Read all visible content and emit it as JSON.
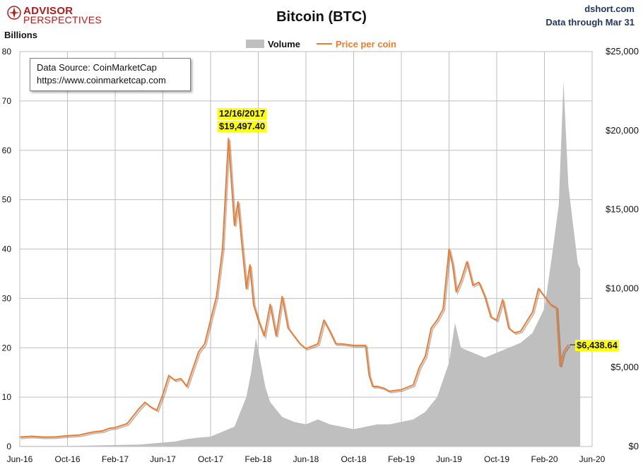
{
  "header": {
    "logo_line1": "ADVISOR",
    "logo_line2": "PERSPECTIVES",
    "title": "Bitcoin (BTC)",
    "site": "dshort.com",
    "data_through": "Data through Mar 31",
    "y_left_unit": "Billions"
  },
  "source_box": {
    "line1": "Data Source: CoinMarketCap",
    "line2": "https://www.coinmarketcap.com"
  },
  "colors": {
    "volume": "#bfbfbf",
    "price": "#ed7d31",
    "highlight": "#ffff00",
    "grid": "#bfbfbf",
    "brand": "#b31b1b",
    "site": "#1f3864"
  },
  "chart_data": {
    "type": "area+line",
    "title": "Bitcoin (BTC)",
    "x_ticks": [
      "Jun-16",
      "Oct-16",
      "Feb-17",
      "Jun-17",
      "Oct-17",
      "Feb-18",
      "Jun-18",
      "Oct-18",
      "Feb-19",
      "Jun-19",
      "Oct-19",
      "Feb-20",
      "Jun-20"
    ],
    "x_range_months": [
      0,
      48
    ],
    "y_left": {
      "label": "Billions",
      "range": [
        0,
        80
      ],
      "ticks": [
        "0",
        "10",
        "20",
        "30",
        "40",
        "50",
        "60",
        "70",
        "80"
      ]
    },
    "y_right": {
      "range": [
        0,
        25000
      ],
      "ticks": [
        "$0",
        "$5,000",
        "$10,000",
        "$15,000",
        "$20,000",
        "$25,000"
      ]
    },
    "legend": [
      {
        "name": "Volume",
        "axis": "left"
      },
      {
        "name": "Price per coin",
        "axis": "right"
      }
    ],
    "series": [
      {
        "name": "Volume",
        "type": "area",
        "unit": "billions USD",
        "points": [
          [
            0,
            0.1
          ],
          [
            2,
            0.1
          ],
          [
            4,
            0.1
          ],
          [
            6,
            0.2
          ],
          [
            8,
            0.3
          ],
          [
            10,
            0.4
          ],
          [
            12,
            0.8
          ],
          [
            13,
            1.0
          ],
          [
            14,
            1.5
          ],
          [
            15,
            1.8
          ],
          [
            16,
            2.0
          ],
          [
            17,
            3.0
          ],
          [
            18,
            4.0
          ],
          [
            19,
            10.0
          ],
          [
            19.4,
            15.0
          ],
          [
            19.8,
            22.0
          ],
          [
            20.2,
            17.0
          ],
          [
            20.6,
            12.0
          ],
          [
            21,
            9.0
          ],
          [
            22,
            6.0
          ],
          [
            23,
            5.0
          ],
          [
            24,
            4.5
          ],
          [
            25,
            5.5
          ],
          [
            26,
            4.5
          ],
          [
            27,
            4.0
          ],
          [
            28,
            3.5
          ],
          [
            29,
            4.0
          ],
          [
            30,
            4.5
          ],
          [
            31,
            4.5
          ],
          [
            32,
            5.0
          ],
          [
            33,
            5.5
          ],
          [
            34,
            7.0
          ],
          [
            35,
            10.0
          ],
          [
            36,
            17.0
          ],
          [
            36.5,
            25.0
          ],
          [
            37,
            20.0
          ],
          [
            38,
            19.0
          ],
          [
            39,
            18.0
          ],
          [
            40,
            19.0
          ],
          [
            41,
            20.0
          ],
          [
            42,
            21.0
          ],
          [
            43,
            23.0
          ],
          [
            44,
            28.0
          ],
          [
            44.6,
            38.0
          ],
          [
            45.2,
            49.0
          ],
          [
            45.6,
            74.0
          ],
          [
            46,
            53.0
          ],
          [
            46.4,
            45.0
          ],
          [
            46.8,
            37.0
          ],
          [
            47,
            36.0
          ]
        ]
      },
      {
        "name": "Price per coin",
        "type": "line",
        "unit": "USD",
        "points": [
          [
            0,
            600
          ],
          [
            1,
            650
          ],
          [
            2,
            600
          ],
          [
            3,
            610
          ],
          [
            4,
            680
          ],
          [
            5,
            730
          ],
          [
            6,
            900
          ],
          [
            7,
            1000
          ],
          [
            7.5,
            1150
          ],
          [
            8,
            1200
          ],
          [
            9,
            1450
          ],
          [
            10,
            2400
          ],
          [
            10.5,
            2800
          ],
          [
            11,
            2500
          ],
          [
            11.5,
            2300
          ],
          [
            12,
            3300
          ],
          [
            12.5,
            4500
          ],
          [
            13,
            4200
          ],
          [
            13.5,
            4300
          ],
          [
            14,
            3800
          ],
          [
            15,
            6000
          ],
          [
            15.5,
            6500
          ],
          [
            16,
            8000
          ],
          [
            16.5,
            9500
          ],
          [
            17,
            12500
          ],
          [
            17.5,
            19497.4
          ],
          [
            18,
            14000
          ],
          [
            18.3,
            15500
          ],
          [
            18.6,
            13000
          ],
          [
            19,
            10000
          ],
          [
            19.3,
            11500
          ],
          [
            19.6,
            9000
          ],
          [
            20,
            8000
          ],
          [
            20.5,
            7000
          ],
          [
            21,
            9000
          ],
          [
            21.5,
            7000
          ],
          [
            22,
            9500
          ],
          [
            22.5,
            7500
          ],
          [
            23,
            7000
          ],
          [
            23.5,
            6500
          ],
          [
            24,
            6200
          ],
          [
            25,
            6500
          ],
          [
            25.5,
            8000
          ],
          [
            26,
            7300
          ],
          [
            26.5,
            6500
          ],
          [
            27,
            6500
          ],
          [
            28,
            6400
          ],
          [
            29,
            6400
          ],
          [
            29.3,
            4500
          ],
          [
            29.6,
            3800
          ],
          [
            30,
            3800
          ],
          [
            30.5,
            3700
          ],
          [
            31,
            3500
          ],
          [
            32,
            3600
          ],
          [
            33,
            3900
          ],
          [
            33.5,
            5000
          ],
          [
            34,
            5700
          ],
          [
            34.5,
            7500
          ],
          [
            35,
            8000
          ],
          [
            35.5,
            8700
          ],
          [
            36,
            12500
          ],
          [
            36.3,
            11500
          ],
          [
            36.6,
            9800
          ],
          [
            37,
            10500
          ],
          [
            37.5,
            11700
          ],
          [
            38,
            10200
          ],
          [
            38.5,
            10400
          ],
          [
            39,
            9500
          ],
          [
            39.5,
            8200
          ],
          [
            40,
            8000
          ],
          [
            40.5,
            9300
          ],
          [
            41,
            7500
          ],
          [
            41.5,
            7200
          ],
          [
            42,
            7300
          ],
          [
            43,
            8500
          ],
          [
            43.5,
            10000
          ],
          [
            44,
            9500
          ],
          [
            44.5,
            9000
          ],
          [
            45,
            8800
          ],
          [
            45.3,
            5100
          ],
          [
            45.6,
            6000
          ],
          [
            46,
            6438.64
          ]
        ]
      }
    ],
    "annotations": [
      {
        "date": "12/16/2017",
        "value": "$19,497.40"
      },
      {
        "value": "$6,438.64"
      }
    ]
  }
}
